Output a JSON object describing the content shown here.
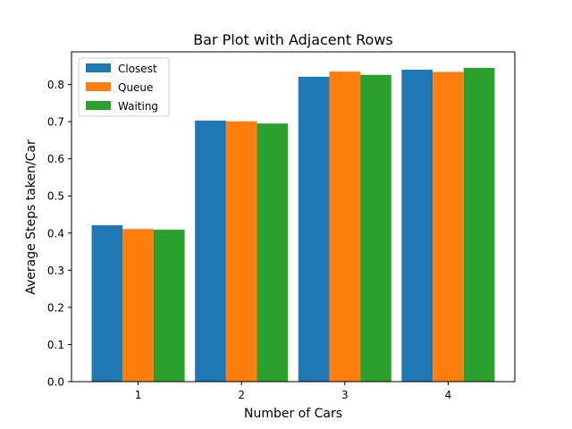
{
  "chart_data": {
    "type": "bar",
    "title": "Bar Plot with Adjacent Rows",
    "xlabel": "Number of Cars",
    "ylabel": "Average Steps taken/Car",
    "categories": [
      "1",
      "2",
      "3",
      "4"
    ],
    "series": [
      {
        "name": "Closest",
        "color": "#1f77b4",
        "values": [
          0.421,
          0.703,
          0.821,
          0.84
        ]
      },
      {
        "name": "Queue",
        "color": "#ff7f0e",
        "values": [
          0.411,
          0.701,
          0.835,
          0.834
        ]
      },
      {
        "name": "Waiting",
        "color": "#2ca02c",
        "values": [
          0.409,
          0.695,
          0.826,
          0.845
        ]
      }
    ],
    "ylim": [
      0,
      0.888
    ],
    "yticks": [
      "0.0",
      "0.1",
      "0.2",
      "0.3",
      "0.4",
      "0.5",
      "0.6",
      "0.7",
      "0.8"
    ],
    "grid": false,
    "legend_position": "top-left"
  }
}
